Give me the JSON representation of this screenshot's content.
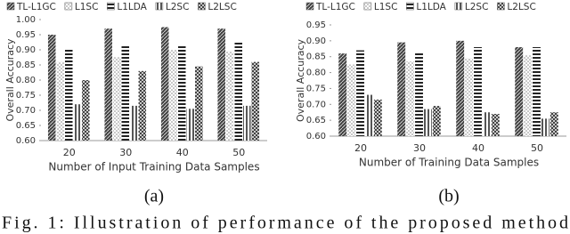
{
  "chart_data": [
    {
      "type": "bar",
      "caption": "(a)",
      "x_label": "Number of Input Training Data Samples",
      "y_label": "Overall Accuracy",
      "categories": [
        "20",
        "30",
        "40",
        "50"
      ],
      "ylim": [
        0.6,
        1.0
      ],
      "yticks": [
        {
          "value": 0.6,
          "label": "0.60"
        },
        {
          "value": 0.65,
          "label": "0.65"
        },
        {
          "value": 0.7,
          "label": "0.70"
        },
        {
          "value": 0.75,
          "label": "0.75"
        },
        {
          "value": 0.8,
          "label": "0.80"
        },
        {
          "value": 0.85,
          "label": "0.85"
        },
        {
          "value": 0.9,
          "label": "0.90"
        },
        {
          "value": 0.95,
          "label": "0.95"
        },
        {
          "value": 1.0,
          "label": "1.00"
        }
      ],
      "series": [
        {
          "name": "TL-L1GC",
          "color": "#444444",
          "values": [
            0.95,
            0.97,
            0.975,
            0.97
          ]
        },
        {
          "name": "L1SC",
          "color": "#888888",
          "values": [
            0.86,
            0.875,
            0.9,
            0.895
          ]
        },
        {
          "name": "L1LDA",
          "color": "#222222",
          "values": [
            0.9,
            0.915,
            0.915,
            0.925
          ]
        },
        {
          "name": "L2SC",
          "color": "#555555",
          "values": [
            0.72,
            0.715,
            0.705,
            0.715
          ]
        },
        {
          "name": "L2LSC",
          "color": "#333333",
          "values": [
            0.8,
            0.83,
            0.845,
            0.86
          ]
        }
      ]
    },
    {
      "type": "bar",
      "caption": "(b)",
      "x_label": "Number of Training Data Samples",
      "y_label": "Overall Accuracy",
      "categories": [
        "20",
        "30",
        "40",
        "50"
      ],
      "ylim": [
        0.6,
        0.95
      ],
      "yticks": [
        {
          "value": 0.6,
          "label": "0.60"
        },
        {
          "value": 0.65,
          "label": "0.65"
        },
        {
          "value": 0.7,
          "label": "0.70"
        },
        {
          "value": 0.75,
          "label": "0.75"
        },
        {
          "value": 0.8,
          "label": "0.80"
        },
        {
          "value": 0.85,
          "label": "0.85"
        },
        {
          "value": 0.9,
          "label": "0.90"
        },
        {
          "value": 0.95,
          "label": "0.95"
        }
      ],
      "series": [
        {
          "name": "TL-L1GC",
          "color": "#444444",
          "values": [
            0.86,
            0.895,
            0.9,
            0.88
          ]
        },
        {
          "name": "L1SC",
          "color": "#888888",
          "values": [
            0.825,
            0.835,
            0.845,
            0.855
          ]
        },
        {
          "name": "L1LDA",
          "color": "#222222",
          "values": [
            0.87,
            0.865,
            0.88,
            0.88
          ]
        },
        {
          "name": "L2SC",
          "color": "#555555",
          "values": [
            0.73,
            0.685,
            0.675,
            0.655
          ]
        },
        {
          "name": "L2LSC",
          "color": "#333333",
          "values": [
            0.715,
            0.695,
            0.67,
            0.675
          ]
        }
      ]
    }
  ],
  "figure_caption": "Fig. 1: Illustration of performance of the proposed method"
}
